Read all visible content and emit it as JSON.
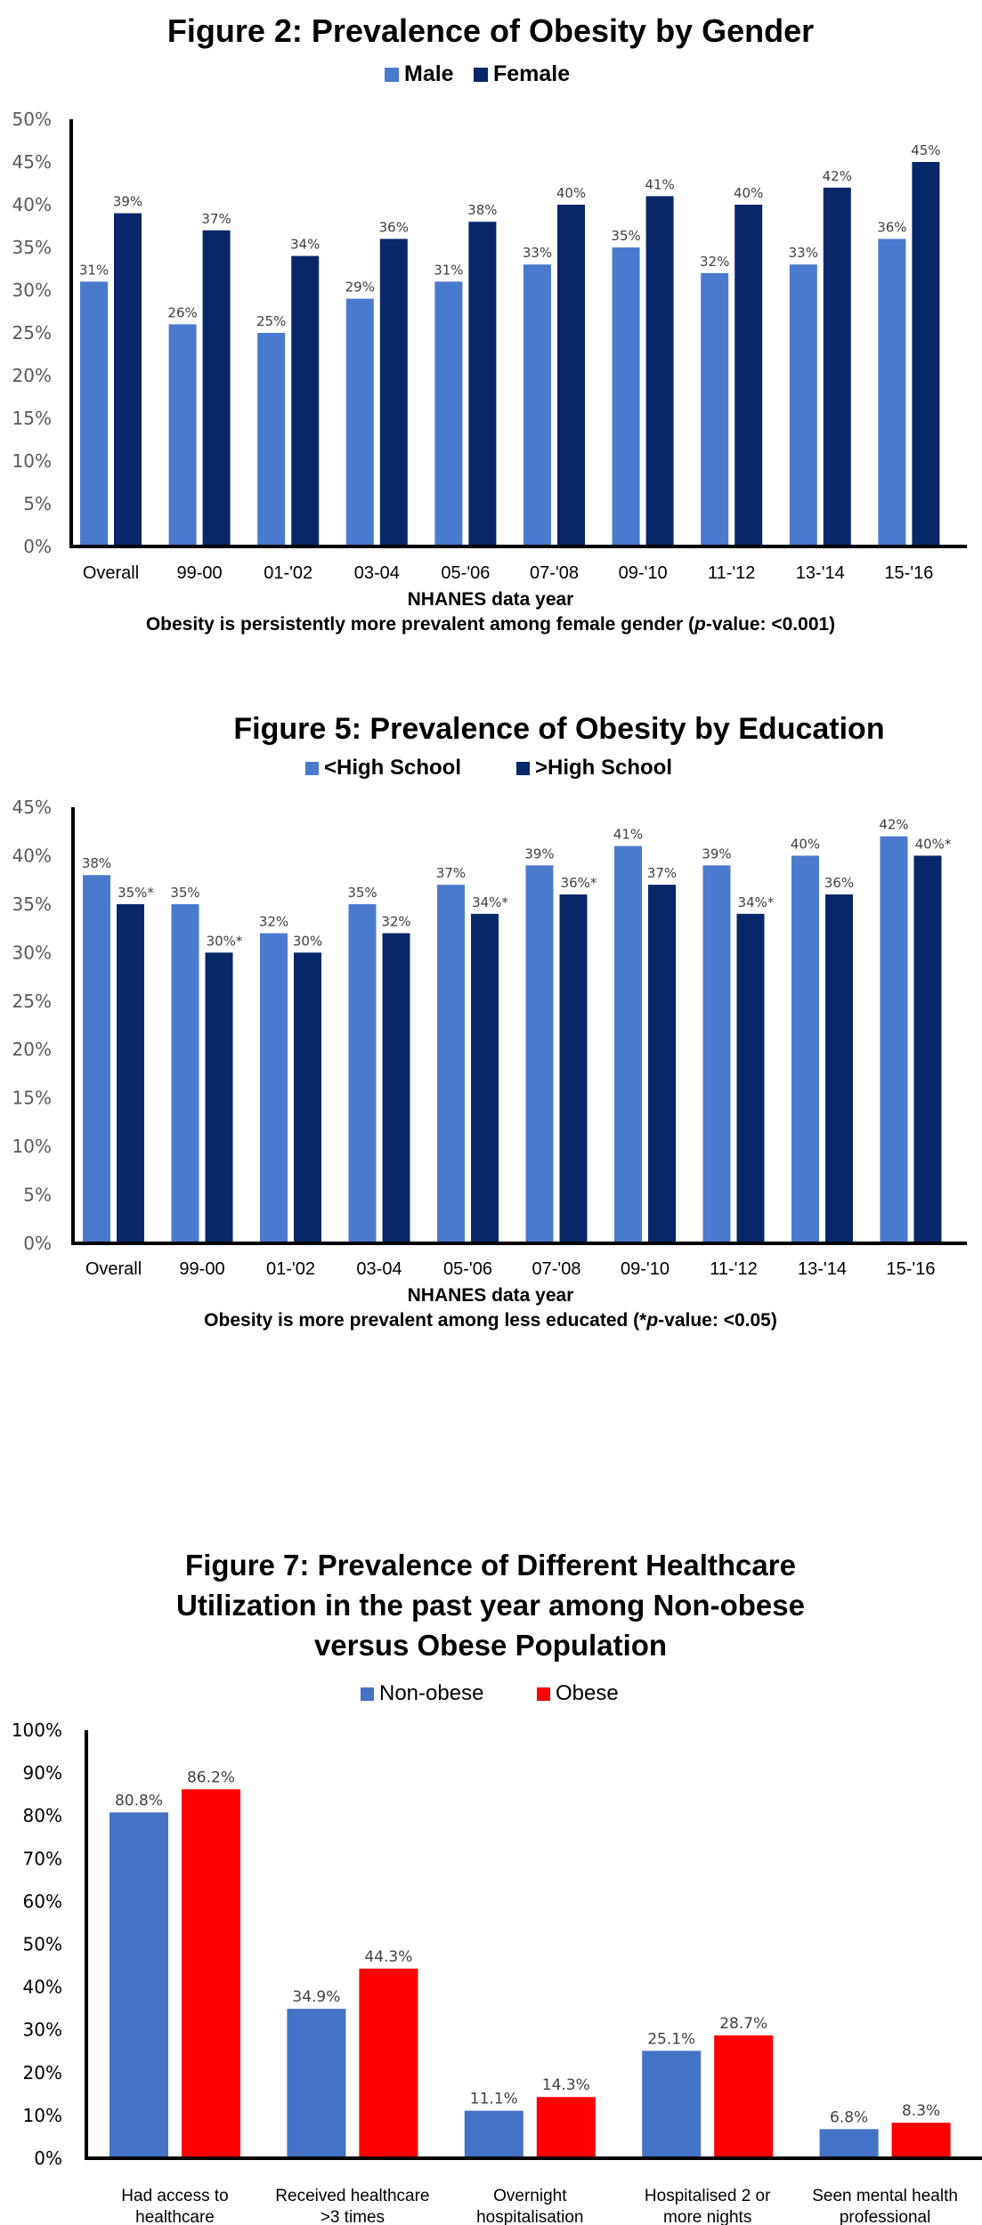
{
  "chart_data": [
    {
      "type": "bar",
      "title": "Figure 2: Prevalence of Obesity by Gender",
      "xlabel": "NHANES data year",
      "ylabel": "",
      "note": {
        "prefix": "Obesity is persistently more prevalent among female gender (",
        "italic": "p",
        "suffix": "-value: <0.001)"
      },
      "categories": [
        "Overall",
        "99-00",
        "01-'02",
        "03-04",
        "05-'06",
        "07-'08",
        "09-'10",
        "11-'12",
        "13-'14",
        "15-'16"
      ],
      "series": [
        {
          "name": "Male",
          "color": "#4a7acd",
          "values": [
            31,
            26,
            25,
            29,
            31,
            33,
            35,
            32,
            33,
            36
          ],
          "labels": [
            "31%",
            "26%",
            "25%",
            "29%",
            "31%",
            "33%",
            "35%",
            "32%",
            "33%",
            "36%"
          ]
        },
        {
          "name": "Female",
          "color": "#072768",
          "values": [
            39,
            37,
            34,
            36,
            38,
            40,
            41,
            40,
            42,
            45
          ],
          "labels": [
            "39%",
            "37%",
            "34%",
            "36%",
            "38%",
            "40%",
            "41%",
            "40%",
            "42%",
            "45%"
          ]
        }
      ],
      "ylim": [
        0,
        50
      ],
      "yticks": [
        "0%",
        "5%",
        "10%",
        "15%",
        "20%",
        "25%",
        "30%",
        "35%",
        "40%",
        "45%",
        "50%"
      ],
      "grid": false,
      "legend_position": "top-center"
    },
    {
      "type": "bar",
      "title": "Figure 5: Prevalence of Obesity by Education",
      "xlabel": "NHANES data year",
      "ylabel": "",
      "note": {
        "prefix": "Obesity is more prevalent among less educated (*",
        "italic": "p",
        "suffix": "-value: <0.05)"
      },
      "categories": [
        "Overall",
        "99-00",
        "01-'02",
        "03-04",
        "05-'06",
        "07-'08",
        "09-'10",
        "11-'12",
        "13-'14",
        "15-'16"
      ],
      "series": [
        {
          "name": "<High School",
          "color": "#4a7acd",
          "values": [
            38,
            35,
            32,
            35,
            37,
            39,
            41,
            39,
            40,
            42
          ],
          "labels": [
            "38%",
            "35%",
            "32%",
            "35%",
            "37%",
            "39%",
            "41%",
            "39%",
            "40%",
            "42%"
          ]
        },
        {
          "name": ">High School",
          "color": "#072768",
          "values": [
            35,
            30,
            30,
            32,
            34,
            36,
            37,
            34,
            36,
            40
          ],
          "labels": [
            "35%*",
            "30%*",
            "30%",
            "32%",
            "34%*",
            "36%*",
            "37%",
            "34%*",
            "36%",
            "40%*"
          ]
        }
      ],
      "ylim": [
        0,
        45
      ],
      "yticks": [
        "0%",
        "5%",
        "10%",
        "15%",
        "20%",
        "25%",
        "30%",
        "35%",
        "40%",
        "45%"
      ],
      "grid": false,
      "legend_position": "top-center"
    },
    {
      "type": "bar",
      "title_lines": [
        "Figure 7: Prevalence of Different Healthcare",
        "Utilization in the past year among Non-obese",
        "versus Obese Population"
      ],
      "title": "Figure 7: Prevalence of Different Healthcare Utilization in the past year among Non-obese versus Obese Population",
      "xlabel": "",
      "ylabel": "",
      "categories": [
        "Had access to healthcare",
        "Received healthcare >3 times",
        "Overnight hospitalisation",
        "Hospitalised 2 or more nights",
        "Seen mental health professional"
      ],
      "category_lines": [
        [
          "Had access to",
          "healthcare"
        ],
        [
          "Received healthcare",
          ">3 times"
        ],
        [
          "Overnight",
          "hospitalisation"
        ],
        [
          "Hospitalised 2 or",
          "more nights"
        ],
        [
          "Seen mental health",
          "professional"
        ]
      ],
      "series": [
        {
          "name": "Non-obese",
          "color": "#4472c4",
          "values": [
            80.8,
            34.9,
            11.1,
            25.1,
            6.8
          ],
          "labels": [
            "80.8%",
            "34.9%",
            "11.1%",
            "25.1%",
            "6.8%"
          ]
        },
        {
          "name": "Obese",
          "color": "#ff0000",
          "values": [
            86.2,
            44.3,
            14.3,
            28.7,
            8.3
          ],
          "labels": [
            "86.2%",
            "44.3%",
            "14.3%",
            "28.7%",
            "8.3%"
          ]
        }
      ],
      "ylim": [
        0,
        100
      ],
      "yticks": [
        "0%",
        "10%",
        "20%",
        "30%",
        "40%",
        "50%",
        "60%",
        "70%",
        "80%",
        "90%",
        "100%"
      ],
      "grid": false,
      "legend_position": "top-center"
    }
  ]
}
